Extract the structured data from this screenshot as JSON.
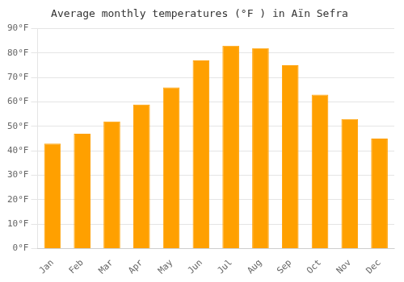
{
  "chart_data": {
    "type": "bar",
    "title": "Average monthly temperatures (°F ) in Aïn Sefra",
    "categories": [
      "Jan",
      "Feb",
      "Mar",
      "Apr",
      "May",
      "Jun",
      "Jul",
      "Aug",
      "Sep",
      "Oct",
      "Nov",
      "Dec"
    ],
    "values": [
      43,
      47,
      52,
      59,
      66,
      77,
      83,
      82,
      75,
      63,
      53,
      45
    ],
    "color": "#FFA000",
    "ylim": [
      0,
      90
    ],
    "yticks": [
      {
        "value": 0,
        "label": "0°F"
      },
      {
        "value": 10,
        "label": "10°F"
      },
      {
        "value": 20,
        "label": "20°F"
      },
      {
        "value": 30,
        "label": "30°F"
      },
      {
        "value": 40,
        "label": "40°F"
      },
      {
        "value": 50,
        "label": "50°F"
      },
      {
        "value": 60,
        "label": "60°F"
      },
      {
        "value": 70,
        "label": "70°F"
      },
      {
        "value": 80,
        "label": "80°F"
      },
      {
        "value": 90,
        "label": "90°F"
      }
    ],
    "grid": true
  }
}
